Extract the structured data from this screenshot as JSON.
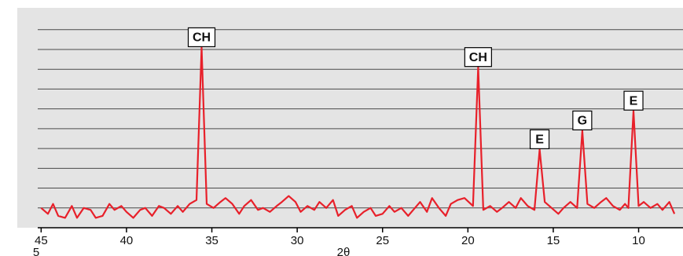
{
  "chart_data": {
    "type": "line",
    "x_label": "2θ",
    "corner_note": "5",
    "x": [
      45.0,
      44.6,
      44.3,
      44.0,
      43.6,
      43.2,
      42.9,
      42.5,
      42.1,
      41.8,
      41.4,
      41.0,
      40.7,
      40.3,
      40.0,
      39.6,
      39.2,
      38.9,
      38.5,
      38.1,
      37.8,
      37.4,
      37.0,
      36.7,
      36.3,
      35.9,
      35.6,
      35.3,
      34.9,
      34.5,
      34.2,
      33.8,
      33.4,
      33.1,
      32.7,
      32.3,
      32.0,
      31.6,
      31.2,
      30.9,
      30.5,
      30.1,
      29.8,
      29.4,
      29.0,
      28.7,
      28.3,
      27.9,
      27.6,
      27.2,
      26.8,
      26.5,
      26.1,
      25.7,
      25.4,
      25.0,
      24.6,
      24.3,
      23.9,
      23.5,
      23.2,
      22.8,
      22.4,
      22.1,
      21.7,
      21.3,
      21.0,
      20.6,
      20.2,
      19.7,
      19.4,
      19.1,
      18.7,
      18.3,
      18.0,
      17.6,
      17.2,
      16.9,
      16.5,
      16.1,
      15.8,
      15.5,
      15.1,
      14.7,
      14.4,
      14.0,
      13.6,
      13.3,
      13.0,
      12.6,
      12.2,
      11.9,
      11.5,
      11.1,
      10.8,
      10.6,
      10.3,
      10.0,
      9.7,
      9.3,
      8.9,
      8.6,
      8.2,
      7.9
    ],
    "series": [
      {
        "color": "#e8202a",
        "values": [
          1.0,
          0.7,
          1.2,
          0.6,
          0.5,
          1.1,
          0.5,
          1.0,
          0.9,
          0.5,
          0.6,
          1.2,
          0.9,
          1.1,
          0.8,
          0.5,
          0.9,
          1.0,
          0.6,
          1.1,
          1.0,
          0.7,
          1.1,
          0.8,
          1.2,
          1.4,
          9.1,
          1.2,
          1.0,
          1.3,
          1.5,
          1.2,
          0.7,
          1.1,
          1.4,
          0.9,
          1.0,
          0.8,
          1.1,
          1.3,
          1.6,
          1.3,
          0.8,
          1.1,
          0.9,
          1.3,
          1.0,
          1.4,
          0.6,
          0.9,
          1.1,
          0.5,
          0.8,
          1.0,
          0.6,
          0.7,
          1.1,
          0.8,
          1.0,
          0.6,
          0.9,
          1.3,
          0.8,
          1.5,
          1.0,
          0.6,
          1.2,
          1.4,
          1.5,
          1.1,
          8.1,
          0.9,
          1.1,
          0.8,
          1.0,
          1.3,
          1.0,
          1.5,
          1.1,
          0.9,
          3.95,
          1.3,
          1.0,
          0.7,
          1.0,
          1.3,
          1.0,
          4.9,
          1.2,
          1.0,
          1.3,
          1.5,
          1.1,
          0.9,
          1.2,
          1.0,
          5.9,
          1.1,
          1.3,
          1.0,
          1.2,
          0.9,
          1.3,
          0.7
        ]
      }
    ],
    "annotations": [
      {
        "text": "CH",
        "x": 35.6,
        "y": 9.1
      },
      {
        "text": "CH",
        "x": 19.4,
        "y": 8.1
      },
      {
        "text": "E",
        "x": 15.8,
        "y": 3.95
      },
      {
        "text": "G",
        "x": 13.3,
        "y": 4.9
      },
      {
        "text": "E",
        "x": 10.3,
        "y": 5.9
      }
    ],
    "xlim": [
      45.2,
      7.4
    ],
    "xticks": [
      45,
      40,
      35,
      30,
      25,
      20,
      15,
      10
    ],
    "ylim": [
      0,
      11.1
    ],
    "gridlines": [
      1,
      2,
      3,
      4,
      5,
      6,
      7,
      8,
      9,
      10
    ],
    "grid": true
  }
}
